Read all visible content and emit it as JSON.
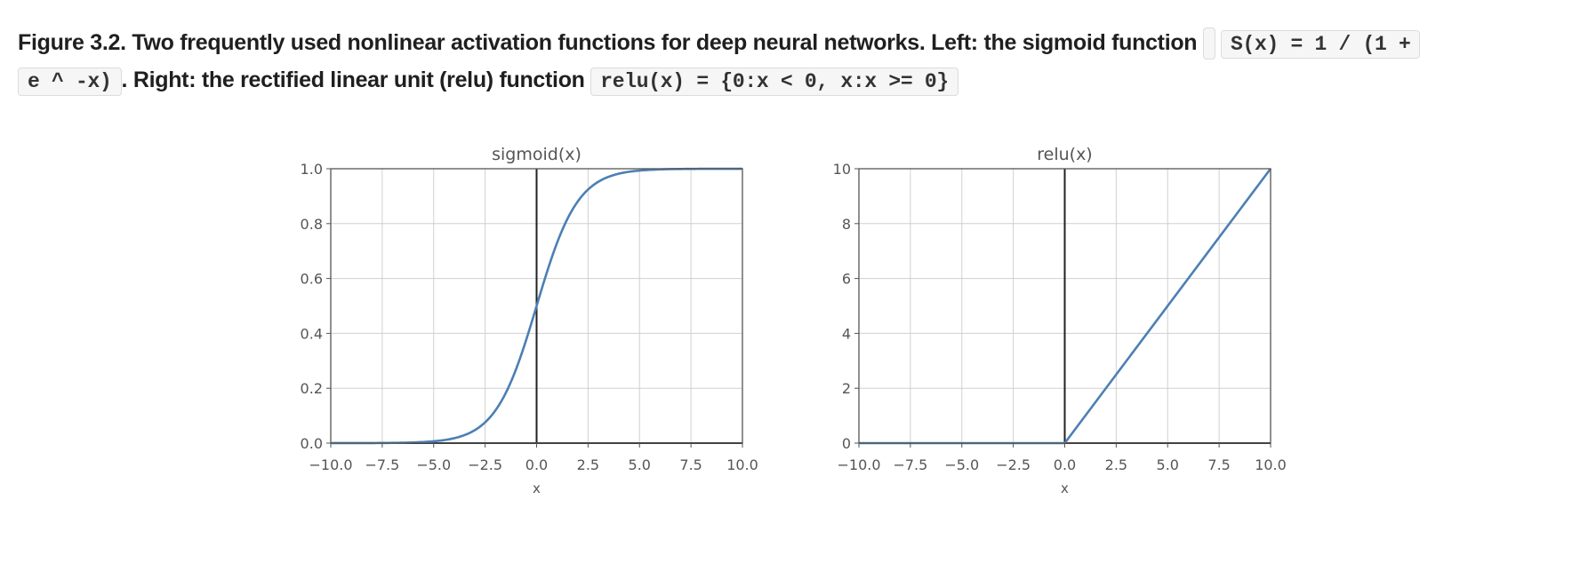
{
  "caption": {
    "lead": "Figure 3.2. Two frequently used nonlinear activation functions for deep neural networks. Left: the sigmoid function",
    "code1_part1": "S(x) = 1 / (1 +",
    "code1_part2": "e ^ -x)",
    "mid": ". Right: the rectified linear unit (relu) function",
    "code2": "relu(x) = {0:x < 0, x:x >= 0}"
  },
  "colors": {
    "line": "#4c7fb4",
    "axis": "#222222",
    "grid": "#d0d0d0",
    "frame": "#555555"
  },
  "chart_data": [
    {
      "type": "line",
      "title": "sigmoid(x)",
      "xlabel": "x",
      "ylabel": "",
      "xlim": [
        -10,
        10
      ],
      "ylim": [
        0,
        1
      ],
      "xticks": [
        -10,
        -7.5,
        -5,
        -2.5,
        0,
        2.5,
        5,
        7.5,
        10
      ],
      "xtick_labels": [
        "−10.0",
        "−7.5",
        "−5.0",
        "−2.5",
        "0.0",
        "2.5",
        "5.0",
        "7.5",
        "10.0"
      ],
      "yticks": [
        0,
        0.2,
        0.4,
        0.6,
        0.8,
        1.0
      ],
      "ytick_labels": [
        "0.0",
        "0.2",
        "0.4",
        "0.6",
        "0.8",
        "1.0"
      ],
      "grid": true,
      "series": [
        {
          "x": [
            -10,
            -9,
            -8,
            -7,
            -6,
            -5,
            -4,
            -3,
            -2.5,
            -2,
            -1.5,
            -1,
            -0.5,
            0,
            0.5,
            1,
            1.5,
            2,
            2.5,
            3,
            4,
            5,
            6,
            7,
            8,
            9,
            10
          ],
          "values": [
            5e-05,
            0.00012,
            0.00034,
            0.0009,
            0.0025,
            0.0067,
            0.018,
            0.047,
            0.076,
            0.119,
            0.182,
            0.269,
            0.378,
            0.5,
            0.622,
            0.731,
            0.818,
            0.881,
            0.924,
            0.953,
            0.982,
            0.993,
            0.998,
            0.999,
            1.0,
            1.0,
            1.0
          ]
        }
      ]
    },
    {
      "type": "line",
      "title": "relu(x)",
      "xlabel": "x",
      "ylabel": "",
      "xlim": [
        -10,
        10
      ],
      "ylim": [
        0,
        10
      ],
      "xticks": [
        -10,
        -7.5,
        -5,
        -2.5,
        0,
        2.5,
        5,
        7.5,
        10
      ],
      "xtick_labels": [
        "−10.0",
        "−7.5",
        "−5.0",
        "−2.5",
        "0.0",
        "2.5",
        "5.0",
        "7.5",
        "10.0"
      ],
      "yticks": [
        0,
        2,
        4,
        6,
        8,
        10
      ],
      "ytick_labels": [
        "0",
        "2",
        "4",
        "6",
        "8",
        "10"
      ],
      "grid": true,
      "series": [
        {
          "x": [
            -10,
            0,
            10
          ],
          "values": [
            0,
            0,
            10
          ]
        }
      ]
    }
  ]
}
